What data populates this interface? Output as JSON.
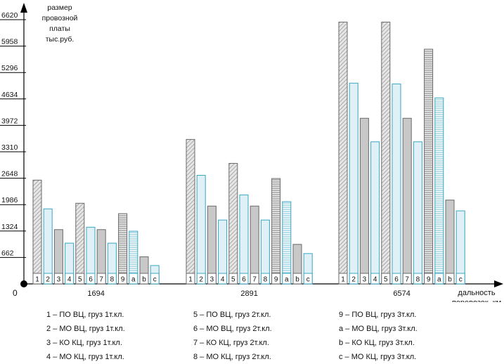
{
  "chart_data": {
    "type": "bar",
    "ylabel": "размер провозной платы тыс.руб.",
    "ylabel_lines": [
      "размер",
      "провозной",
      "платы",
      "тыс.руб."
    ],
    "xlabel": "дальность перевозок, км",
    "xlabel_lines": [
      "дальность",
      "перевозок, км"
    ],
    "origin_label": "0",
    "y_ticks": [
      662,
      1324,
      1986,
      2648,
      3310,
      3972,
      4634,
      5296,
      5958,
      6620
    ],
    "ylim": [
      0,
      6620
    ],
    "grid": false,
    "categories": [
      "1694",
      "2891",
      "6574"
    ],
    "series": [
      {
        "name": "1 – ПО ВЦ, груз 1т.кл.",
        "code": "1",
        "style": "diagonal",
        "values": [
          2600,
          3620,
          6560
        ]
      },
      {
        "name": "2 – МО ВЦ, груз 1т.кл.",
        "code": "2",
        "style": "blue",
        "values": [
          1880,
          2720,
          5030
        ]
      },
      {
        "name": "3 – КО КЦ, груз 1т.кл.",
        "code": "3",
        "style": "gray",
        "values": [
          1360,
          1950,
          4150
        ]
      },
      {
        "name": "4 – МО КЦ, груз 1т.кл.",
        "code": "4",
        "style": "blue",
        "values": [
          1020,
          1600,
          3560
        ]
      },
      {
        "name": "5 – ПО ВЦ, груз 2т.кл.",
        "code": "5",
        "style": "diagonal",
        "values": [
          2020,
          3020,
          6560
        ]
      },
      {
        "name": "6 – МО ВЦ, груз 2т.кл.",
        "code": "6",
        "style": "blue",
        "values": [
          1420,
          2230,
          5010
        ]
      },
      {
        "name": "7 – КО КЦ, груз 2т.кл.",
        "code": "7",
        "style": "gray",
        "values": [
          1360,
          1950,
          4150
        ]
      },
      {
        "name": "8 – МО КЦ, груз 2т.кл.",
        "code": "8",
        "style": "blue",
        "values": [
          1020,
          1600,
          3560
        ]
      },
      {
        "name": "9 – ПО ВЦ, груз 3т.кл.",
        "code": "9",
        "style": "hstripe",
        "values": [
          1760,
          2640,
          5880
        ]
      },
      {
        "name": "a – МО ВЦ, груз 3т.кл.",
        "code": "a",
        "style": "hstripe-blue",
        "values": [
          1320,
          2060,
          4660
        ]
      },
      {
        "name": "b – КО КЦ, груз 3т.кл.",
        "code": "b",
        "style": "gray",
        "values": [
          680,
          990,
          2100
        ]
      },
      {
        "name": "c – МО КЦ, груз 3т.кл.",
        "code": "c",
        "style": "blue",
        "values": [
          460,
          760,
          1830
        ]
      }
    ],
    "legend_placement": "bottom",
    "colors": {
      "blue_fill": "#dff1f6",
      "blue_edge": "#3aa6c4",
      "gray_fill": "#c8c8c8",
      "hatch_line": "#9a9a9a",
      "bar_edge": "#6a6a6a"
    }
  }
}
